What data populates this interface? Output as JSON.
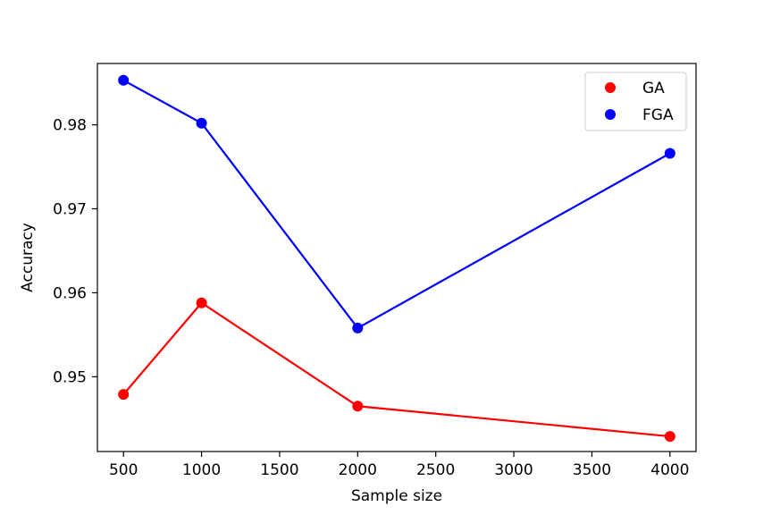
{
  "chart_data": {
    "type": "line",
    "xlabel": "Sample size",
    "ylabel": "Accuracy",
    "x": [
      500,
      1000,
      2000,
      4000
    ],
    "xlim": [
      333,
      4167
    ],
    "ylim": [
      0.9411,
      0.9873
    ],
    "xticks": [
      500,
      1000,
      1500,
      2000,
      2500,
      3000,
      3500,
      4000
    ],
    "yticks": [
      0.95,
      0.96,
      0.97,
      0.98
    ],
    "ytick_labels": [
      "0.95",
      "0.96",
      "0.97",
      "0.98"
    ],
    "grid": false,
    "legend_position": "top-right",
    "series": [
      {
        "name": "GA",
        "color": "#ff0000",
        "values": [
          0.9479,
          0.9588,
          0.9465,
          0.9429
        ]
      },
      {
        "name": "FGA",
        "color": "#0000ff",
        "values": [
          0.9853,
          0.9802,
          0.9558,
          0.9766
        ]
      }
    ]
  }
}
